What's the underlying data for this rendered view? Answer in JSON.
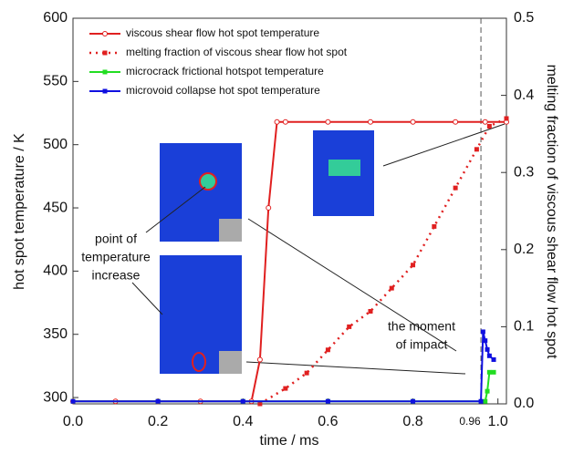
{
  "chart_data": {
    "type": "line",
    "x_label": "time / ms",
    "y_label": "hot spot temperature / K",
    "y2_label": "melting fraction of viscous shear flow hot spot",
    "xlim": [
      0,
      1.02
    ],
    "ylim": [
      295,
      600
    ],
    "y2lim": [
      0,
      0.5
    ],
    "xticks": [
      {
        "value": 0,
        "label": "0.0"
      },
      0.2,
      0.4,
      0.6,
      0.8,
      0.96,
      {
        "value": 1,
        "label": "1.0"
      }
    ],
    "yticks": [
      300,
      350,
      400,
      450,
      500,
      550,
      600
    ],
    "y2ticks": [
      {
        "value": 0,
        "label": "0.0"
      },
      0.1,
      0.2,
      0.3,
      0.4,
      0.5
    ],
    "series": [
      {
        "name": "viscous shear flow hot spot temperature",
        "color": "#e02020",
        "x": [
          0,
          0.1,
          0.2,
          0.3,
          0.42,
          0.44,
          0.46,
          0.48,
          0.5,
          0.6,
          0.7,
          0.8,
          0.9,
          0.97,
          1.02
        ],
        "values": [
          297,
          297,
          297,
          297,
          297,
          330,
          450,
          518,
          518,
          518,
          518,
          518,
          518,
          518,
          518
        ]
      },
      {
        "name": "melting fraction of viscous shear flow hot spot",
        "color": "#e02020",
        "axis": "y2",
        "x": [
          0.44,
          0.5,
          0.55,
          0.6,
          0.65,
          0.7,
          0.75,
          0.8,
          0.85,
          0.9,
          0.95,
          0.98,
          1.02
        ],
        "values": [
          0,
          0.02,
          0.04,
          0.07,
          0.1,
          0.12,
          0.15,
          0.18,
          0.23,
          0.28,
          0.33,
          0.36,
          0.37
        ]
      },
      {
        "name": "microcrack frictional hotspot temperature",
        "color": "#22dd22",
        "x": [
          0,
          0.2,
          0.4,
          0.6,
          0.8,
          0.97,
          0.975,
          0.98,
          0.99
        ],
        "values": [
          297,
          297,
          297,
          297,
          297,
          297,
          305,
          320,
          320
        ]
      },
      {
        "name": "microvoid collapse hot spot temperature",
        "color": "#1010e0",
        "x": [
          0,
          0.2,
          0.4,
          0.6,
          0.8,
          0.96,
          0.965,
          0.97,
          0.975,
          0.98,
          0.99
        ],
        "values": [
          297,
          297,
          297,
          297,
          297,
          297,
          352,
          345,
          338,
          333,
          330
        ]
      }
    ],
    "annotations": [
      "point of",
      "temperature",
      "increase",
      "the moment",
      "of impact"
    ]
  }
}
